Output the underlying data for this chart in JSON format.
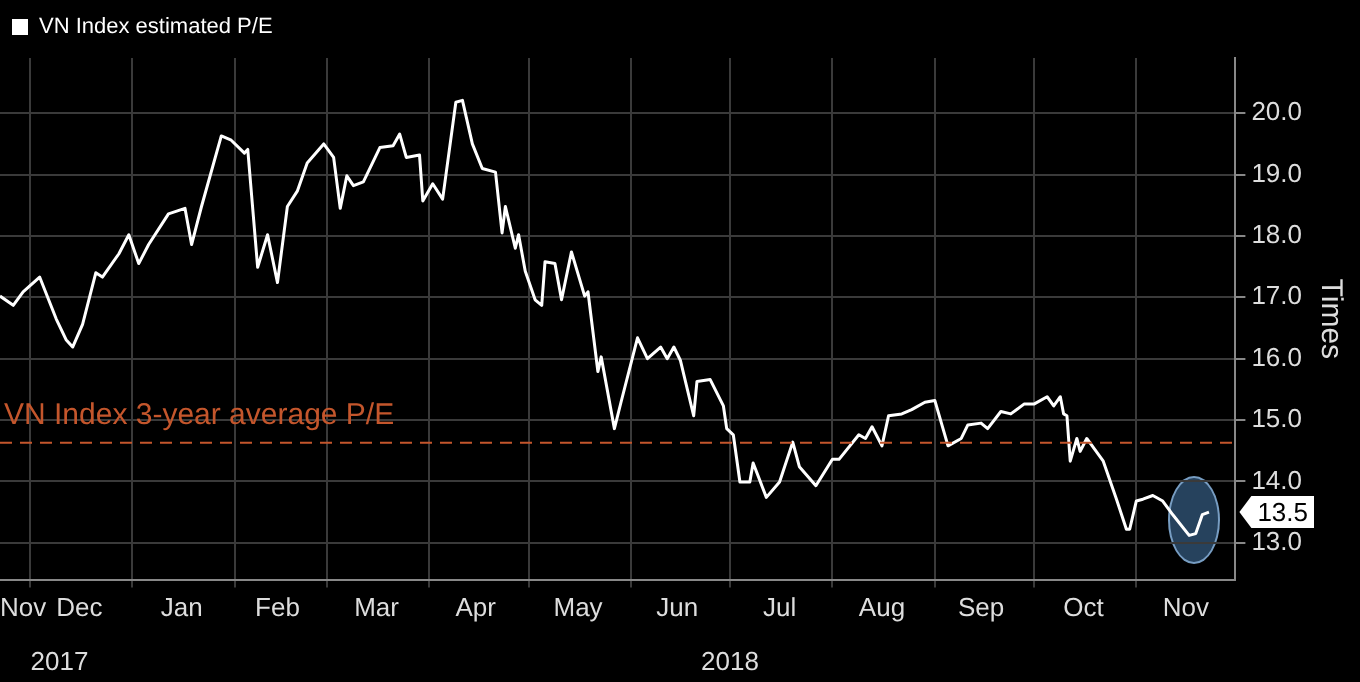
{
  "chart_data": {
    "type": "line",
    "x": [
      "2017-11-22",
      "2017-11-26",
      "2017-11-29",
      "2017-12-04",
      "2017-12-09",
      "2017-12-12",
      "2017-12-14",
      "2017-12-17",
      "2017-12-21",
      "2017-12-23",
      "2017-12-28",
      "2017-12-31",
      "2018-01-03",
      "2018-01-06",
      "2018-01-12",
      "2018-01-17",
      "2018-01-19",
      "2018-01-22",
      "2018-01-28",
      "2018-01-31",
      "2018-02-04",
      "2018-02-05",
      "2018-02-08",
      "2018-02-11",
      "2018-02-14",
      "2018-02-17",
      "2018-02-20",
      "2018-02-23",
      "2018-02-28",
      "2018-03-03",
      "2018-03-05",
      "2018-03-07",
      "2018-03-09",
      "2018-03-12",
      "2018-03-17",
      "2018-03-21",
      "2018-03-23",
      "2018-03-25",
      "2018-03-29",
      "2018-03-30",
      "2018-04-02",
      "2018-04-05",
      "2018-04-09",
      "2018-04-11",
      "2018-04-14",
      "2018-04-17",
      "2018-04-21",
      "2018-04-23",
      "2018-04-24",
      "2018-04-27",
      "2018-04-28",
      "2018-04-30",
      "2018-05-03",
      "2018-05-05",
      "2018-05-06",
      "2018-05-09",
      "2018-05-11",
      "2018-05-14",
      "2018-05-18",
      "2018-05-19",
      "2018-05-22",
      "2018-05-23",
      "2018-05-27",
      "2018-05-29",
      "2018-06-03",
      "2018-06-06",
      "2018-06-10",
      "2018-06-12",
      "2018-06-14",
      "2018-06-16",
      "2018-06-20",
      "2018-06-21",
      "2018-06-25",
      "2018-06-29",
      "2018-06-30",
      "2018-07-02",
      "2018-07-04",
      "2018-07-07",
      "2018-07-08",
      "2018-07-12",
      "2018-07-16",
      "2018-07-20",
      "2018-07-22",
      "2018-07-27",
      "2018-08-01",
      "2018-08-03",
      "2018-08-09",
      "2018-08-11",
      "2018-08-13",
      "2018-08-16",
      "2018-08-18",
      "2018-08-22",
      "2018-08-25",
      "2018-08-29",
      "2018-09-01",
      "2018-09-05",
      "2018-09-09",
      "2018-09-11",
      "2018-09-15",
      "2018-09-17",
      "2018-09-21",
      "2018-09-24",
      "2018-09-28",
      "2018-10-01",
      "2018-10-05",
      "2018-10-07",
      "2018-10-09",
      "2018-10-10",
      "2018-10-11",
      "2018-10-12",
      "2018-10-14",
      "2018-10-15",
      "2018-10-17",
      "2018-10-22",
      "2018-10-26",
      "2018-10-29",
      "2018-10-30",
      "2018-11-01",
      "2018-11-03",
      "2018-11-06",
      "2018-11-09",
      "2018-11-12",
      "2018-11-17",
      "2018-11-19",
      "2018-11-21",
      "2018-11-23"
    ],
    "series": [
      {
        "name": "VN Index estimated P/E",
        "color": "#ffffff",
        "values": [
          17.02,
          16.87,
          17.09,
          17.33,
          16.65,
          16.31,
          16.19,
          16.56,
          17.4,
          17.33,
          17.71,
          18.02,
          17.55,
          17.86,
          18.36,
          18.45,
          17.86,
          18.48,
          19.63,
          19.56,
          19.35,
          19.41,
          17.49,
          18.02,
          17.24,
          18.48,
          18.73,
          19.19,
          19.5,
          19.28,
          18.45,
          18.98,
          18.82,
          18.88,
          19.44,
          19.47,
          19.66,
          19.28,
          19.32,
          18.57,
          18.85,
          18.6,
          20.18,
          20.21,
          19.5,
          19.1,
          19.04,
          18.05,
          18.48,
          17.8,
          18.02,
          17.43,
          16.96,
          16.87,
          17.58,
          17.55,
          16.96,
          17.74,
          17.02,
          17.09,
          15.79,
          16.03,
          14.86,
          15.29,
          16.34,
          16.0,
          16.19,
          16.0,
          16.19,
          15.97,
          15.07,
          15.63,
          15.66,
          15.23,
          14.86,
          14.76,
          13.99,
          13.99,
          14.3,
          13.74,
          13.99,
          14.64,
          14.24,
          13.93,
          14.36,
          14.36,
          14.76,
          14.7,
          14.89,
          14.58,
          15.07,
          15.1,
          15.17,
          15.29,
          15.32,
          14.58,
          14.7,
          14.92,
          14.95,
          14.86,
          15.14,
          15.1,
          15.26,
          15.26,
          15.38,
          15.23,
          15.38,
          15.1,
          15.07,
          14.33,
          14.7,
          14.49,
          14.7,
          14.33,
          13.71,
          13.22,
          13.22,
          13.68,
          13.71,
          13.77,
          13.68,
          13.46,
          13.12,
          13.15,
          13.46,
          13.5
        ]
      }
    ],
    "xlim": [
      "2017-11-22",
      "2018-12-01"
    ],
    "xticks": [
      {
        "value": "2017-12-01",
        "label": null
      },
      {
        "value": "2018-01-01",
        "label": null
      },
      {
        "value": "2018-02-01",
        "label": null
      },
      {
        "value": "2018-03-01",
        "label": null
      },
      {
        "value": "2018-04-01",
        "label": null
      },
      {
        "value": "2018-05-01",
        "label": null
      },
      {
        "value": "2018-06-01",
        "label": null
      },
      {
        "value": "2018-07-01",
        "label": null
      },
      {
        "value": "2018-08-01",
        "label": null
      },
      {
        "value": "2018-09-01",
        "label": null
      },
      {
        "value": "2018-10-01",
        "label": null
      },
      {
        "value": "2018-11-01",
        "label": null
      },
      {
        "value": "2017-11-29",
        "label": "Nov"
      },
      {
        "value": "2017-12-16",
        "label": "Dec"
      },
      {
        "value": "2018-01-16",
        "label": "Jan"
      },
      {
        "value": "2018-02-14",
        "label": "Feb"
      },
      {
        "value": "2018-03-16",
        "label": "Mar"
      },
      {
        "value": "2018-04-15",
        "label": "Apr"
      },
      {
        "value": "2018-05-16",
        "label": "May"
      },
      {
        "value": "2018-06-15",
        "label": "Jun"
      },
      {
        "value": "2018-07-16",
        "label": "Jul"
      },
      {
        "value": "2018-08-16",
        "label": "Aug"
      },
      {
        "value": "2018-09-15",
        "label": "Sep"
      },
      {
        "value": "2018-10-16",
        "label": "Oct"
      },
      {
        "value": "2018-11-16",
        "label": "Nov"
      }
    ],
    "x2lim": [
      "2017-11-22",
      "2018-12-01"
    ],
    "x2ticks": [
      {
        "value": "2017-12-10",
        "label": "2017"
      },
      {
        "value": "2018-07-01",
        "label": "2018"
      }
    ],
    "ylim": [
      12.4,
      20.9
    ],
    "yticks": [
      {
        "value": 13,
        "label": "13.0"
      },
      {
        "value": 14,
        "label": "14.0"
      },
      {
        "value": 15,
        "label": "15.0"
      },
      {
        "value": 16,
        "label": "16.0"
      },
      {
        "value": 17,
        "label": "17.0"
      },
      {
        "value": 18,
        "label": "18.0"
      },
      {
        "value": 19,
        "label": "19.0"
      },
      {
        "value": 20,
        "label": "20.0"
      }
    ],
    "ylabel": "Times",
    "ref_lines": [
      {
        "axis": "y",
        "value": 14.63,
        "label": "VN Index 3-year average P/E",
        "color": "#c4562c",
        "line_style": "dashed"
      }
    ],
    "annotations": [
      {
        "text": "13.5",
        "x": "2018-11-23",
        "y": 13.5
      }
    ],
    "grid": true,
    "legend": "top left",
    "marker": "none",
    "line_style": "solid"
  }
}
